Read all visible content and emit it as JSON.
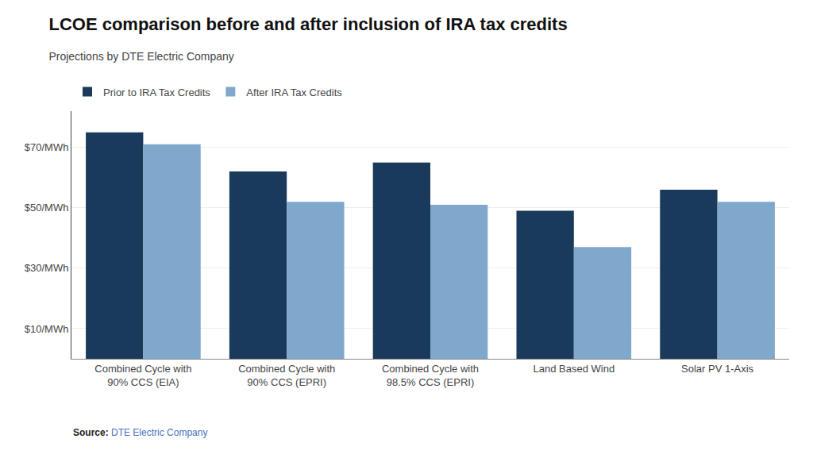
{
  "chart_data": {
    "type": "bar",
    "title": "LCOE comparison before and after inclusion of IRA tax credits",
    "subtitle": "Projections by DTE Electric Company",
    "categories": [
      "Combined Cycle with\n90% CCS (EIA)",
      "Combined Cycle with\n90% CCS (EPRI)",
      "Combined Cycle with\n98.5% CCS (EPRI)",
      "Land Based Wind",
      "Solar PV 1-Axis"
    ],
    "series": [
      {
        "name": "Prior to IRA Tax Credits",
        "color": "#1a3a5c",
        "values": [
          75,
          62,
          65,
          49,
          56
        ]
      },
      {
        "name": "After IRA Tax Credits",
        "color": "#7fa8cc",
        "values": [
          71,
          52,
          51,
          37,
          52
        ]
      }
    ],
    "ylim": [
      0,
      82
    ],
    "yticks": [
      {
        "value": 10,
        "label": "$10/MWh"
      },
      {
        "value": 30,
        "label": "$30/MWh"
      },
      {
        "value": 50,
        "label": "$50/MWh"
      },
      {
        "value": 70,
        "label": "$70/MWh"
      }
    ],
    "grid": true,
    "legend": "upper left",
    "annotations": [
      {
        "text": "Source:"
      },
      {
        "text": "DTE Electric Company",
        "color": "#4472C4"
      }
    ]
  }
}
